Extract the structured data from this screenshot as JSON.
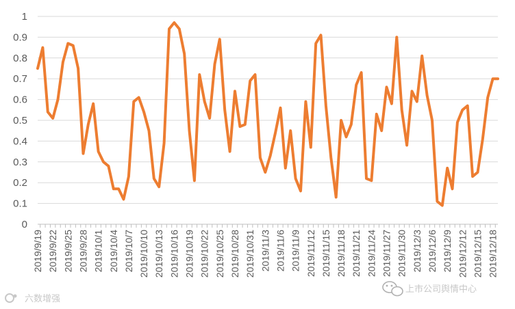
{
  "chart_data": {
    "type": "line",
    "title": "",
    "xlabel": "",
    "ylabel": "",
    "ylim": [
      0,
      1
    ],
    "yticks": [
      "0",
      "0.1",
      "0.2",
      "0.3",
      "0.4",
      "0.5",
      "0.6",
      "0.7",
      "0.8",
      "0.9",
      "1"
    ],
    "x_start": "2019/9/19",
    "x_tick_step_days": 3,
    "x_tick_labels": [
      "2019/9/19",
      "2019/9/22",
      "2019/9/25",
      "2019/9/28",
      "2019/10/1",
      "2019/10/4",
      "2019/10/7",
      "2019/10/10",
      "2019/10/13",
      "2019/10/16",
      "2019/10/19",
      "2019/10/22",
      "2019/10/25",
      "2019/10/28",
      "2019/10/31",
      "2019/11/3",
      "2019/11/6",
      "2019/11/9",
      "2019/11/12",
      "2019/11/15",
      "2019/11/18",
      "2019/11/21",
      "2019/11/24",
      "2019/11/27",
      "2019/11/30",
      "2019/12/3",
      "2019/12/6",
      "2019/12/9",
      "2019/12/12",
      "2019/12/15",
      "2019/12/18"
    ],
    "grid": true,
    "legend": "none",
    "series": [
      {
        "color": "#ED7D31",
        "values": [
          0.75,
          0.85,
          0.54,
          0.51,
          0.6,
          0.78,
          0.87,
          0.86,
          0.75,
          0.34,
          0.48,
          0.58,
          0.35,
          0.3,
          0.28,
          0.17,
          0.17,
          0.12,
          0.23,
          0.59,
          0.61,
          0.54,
          0.45,
          0.22,
          0.18,
          0.39,
          0.94,
          0.97,
          0.94,
          0.82,
          0.45,
          0.21,
          0.72,
          0.59,
          0.51,
          0.77,
          0.89,
          0.55,
          0.35,
          0.64,
          0.47,
          0.48,
          0.69,
          0.72,
          0.32,
          0.25,
          0.33,
          0.44,
          0.56,
          0.27,
          0.45,
          0.22,
          0.16,
          0.59,
          0.37,
          0.87,
          0.91,
          0.57,
          0.32,
          0.13,
          0.5,
          0.42,
          0.48,
          0.67,
          0.73,
          0.22,
          0.21,
          0.53,
          0.45,
          0.66,
          0.58,
          0.9,
          0.55,
          0.38,
          0.64,
          0.59,
          0.81,
          0.62,
          0.5,
          0.11,
          0.09,
          0.27,
          0.17,
          0.49,
          0.55,
          0.57,
          0.23,
          0.25,
          0.41,
          0.61,
          0.7,
          0.7
        ]
      }
    ]
  },
  "watermarks": {
    "left_text": "六数增强",
    "right_text": "上市公司舆情中心"
  }
}
